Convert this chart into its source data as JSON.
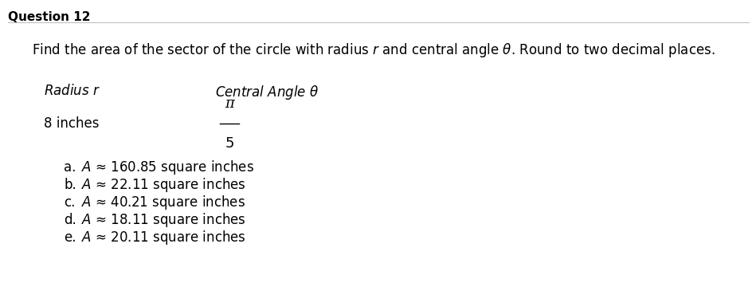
{
  "question_label": "Question 12",
  "question_text": "Find the area of the sector of the circle with radius $r$ and central angle $\\theta$. Round to two decimal places.",
  "table_header_col1": "Radius $r$",
  "table_header_col2": "Central Angle $\\theta$",
  "table_val_col1": "8 inches",
  "fraction_numerator": "π",
  "fraction_denominator": "5",
  "choices_prefix": [
    "a.",
    "b.",
    "c.",
    "d.",
    "e."
  ],
  "choices_body": [
    "$A$ ≈ 160.85 square inches",
    "$A$ ≈ 22.11 square inches",
    "$A$ ≈ 40.21 square inches",
    "$A$ ≈ 18.11 square inches",
    "$A$ ≈ 20.11 square inches"
  ],
  "bg_color": "#ffffff",
  "text_color": "#000000",
  "line_color": "#c0c0c0",
  "label_fontsize": 11,
  "question_fontsize": 12,
  "table_fontsize": 12,
  "choice_fontsize": 12,
  "fig_width": 9.45,
  "fig_height": 3.55,
  "dpi": 100
}
